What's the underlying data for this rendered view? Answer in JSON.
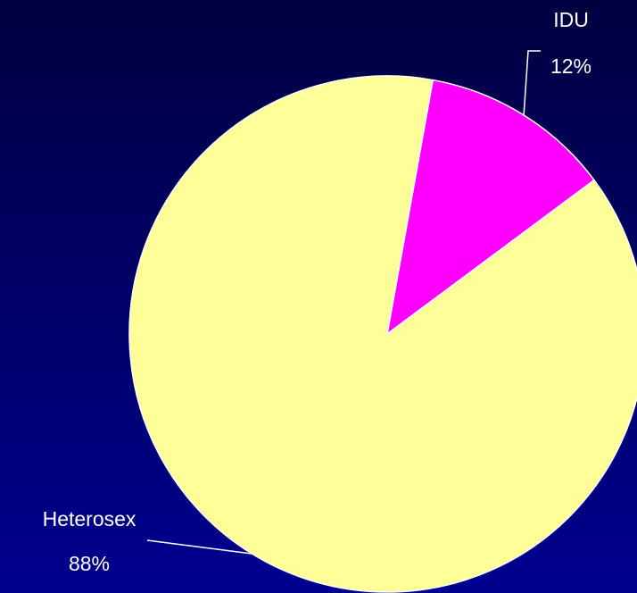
{
  "chart_data": {
    "type": "pie",
    "categories": [
      "IDU",
      "Heterosex"
    ],
    "values": [
      12,
      88
    ],
    "value_labels": [
      "12%",
      "88%"
    ],
    "colors": [
      "#ff00ff",
      "#ffff99"
    ]
  }
}
